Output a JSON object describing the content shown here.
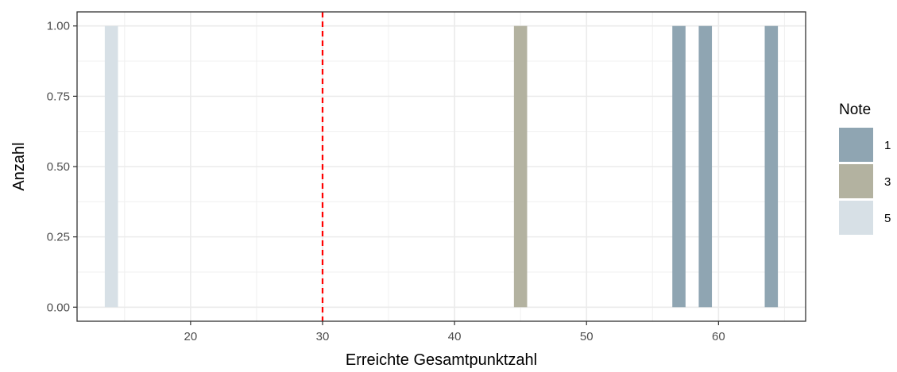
{
  "chart_data": {
    "type": "bar",
    "xlabel": "Erreichte Gesamtpunktzahl",
    "ylabel": "Anzahl",
    "xlim": [
      11.4,
      66.6
    ],
    "ylim": [
      -0.05,
      1.05
    ],
    "x_ticks": [
      20,
      30,
      40,
      50,
      60
    ],
    "x_tick_labels": [
      "20",
      "30",
      "40",
      "50",
      "60"
    ],
    "y_ticks": [
      0,
      0.25,
      0.5,
      0.75,
      1
    ],
    "y_tick_labels": [
      "0.00",
      "0.25",
      "0.50",
      "0.75",
      "1.00"
    ],
    "bin_width": 1,
    "grid": true,
    "threshold_line": {
      "x": 30,
      "color": "#ff0000",
      "style": "dashed"
    },
    "legend": {
      "title": "Note",
      "position": "right",
      "entries": [
        {
          "label": "1",
          "color": "#8fa5b2"
        },
        {
          "label": "3",
          "color": "#b3b2a0"
        },
        {
          "label": "5",
          "color": "#d7e0e6"
        }
      ]
    },
    "bars": [
      {
        "x": 14,
        "count": 1,
        "note": "5"
      },
      {
        "x": 45,
        "count": 1,
        "note": "3"
      },
      {
        "x": 57,
        "count": 1,
        "note": "1"
      },
      {
        "x": 59,
        "count": 1,
        "note": "1"
      },
      {
        "x": 64,
        "count": 1,
        "note": "1"
      }
    ]
  }
}
